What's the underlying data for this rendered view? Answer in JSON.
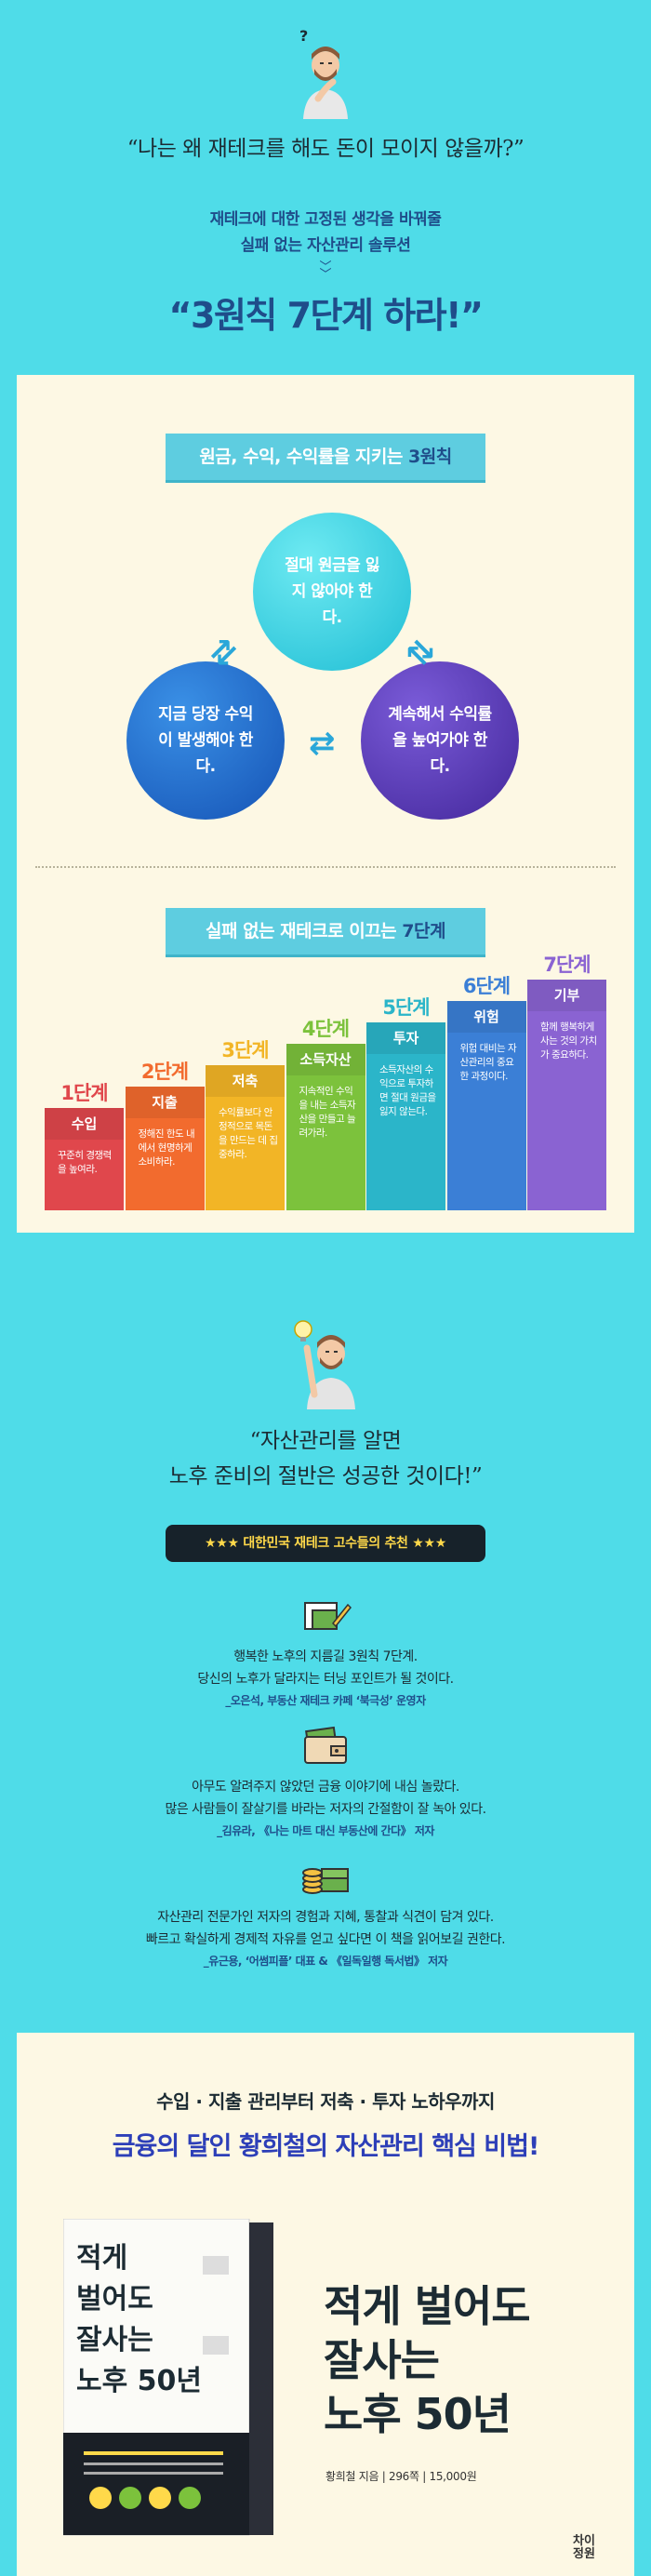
{
  "intro": {
    "question": "“나는 왜 재테크를 해도 돈이 모이지 않을까?”",
    "sub_line1": "재테크에 대한 고정된 생각을 바꿔줄",
    "sub_line2": "실패 없는 자산관리 솔루션",
    "headline": "“3원칙 7단계 하라!”"
  },
  "principles": {
    "ribbon_prefix": "원금, 수익, 수익률을 지키는 ",
    "ribbon_emph": "3원칙",
    "items": [
      "절대 원금을 잃지 않아야 한다.",
      "지금 당장 수익이 발생해야 한다.",
      "계속해서 수익률을 높여가야 한다."
    ]
  },
  "steps": {
    "ribbon_prefix": "실패 없는 재테크로 이끄는 ",
    "ribbon_emph": "7단계",
    "items": [
      {
        "num": "1단계",
        "title": "수입",
        "desc": "꾸준히 경쟁력을 높여라.",
        "color": "#e0474c"
      },
      {
        "num": "2단계",
        "title": "지출",
        "desc": "정해진 한도 내에서 현명하게 소비하라.",
        "color": "#f26b2e"
      },
      {
        "num": "3단계",
        "title": "저축",
        "desc": "수익률보다 안정적으로 목돈을 만드는 데 집중하라.",
        "color": "#f2b526"
      },
      {
        "num": "4단계",
        "title": "소득자산",
        "desc": "지속적인 수익을 내는 소득자산을 만들고 늘려가라.",
        "color": "#7cc23c"
      },
      {
        "num": "5단계",
        "title": "투자",
        "desc": "소득자산의 수익으로 투자하면 절대 원금을 잃지 않는다.",
        "color": "#2bb5c9"
      },
      {
        "num": "6단계",
        "title": "위험",
        "desc": "위험 대비는 자산관리의 중요한 과정이다.",
        "color": "#3b7fd6"
      },
      {
        "num": "7단계",
        "title": "기부",
        "desc": "함께 행복하게 사는 것의 가치가 중요하다.",
        "color": "#8a63d2"
      }
    ]
  },
  "quote": {
    "line1": "“자산관리를 알면",
    "line2": "노후 준비의 절반은 성공한 것이다!”",
    "badge": "★★★ 대한민국 재테크 고수들의 추천 ★★★"
  },
  "recommendations": [
    {
      "icon": "money-pen-icon",
      "line1": "행복한 노후의 지름길 3원칙 7단계.",
      "line2": "당신의 노후가 달라지는 터닝 포인트가 될 것이다.",
      "by": "_오은석, 부동산 재테크 카페 ‘북극성’ 운영자"
    },
    {
      "icon": "wallet-icon",
      "line1": "아무도 알려주지 않았던 금융 이야기에 내심 놀랐다.",
      "line2": "많은 사람들이 잘살기를 바라는 저자의 간절함이 잘 녹아 있다.",
      "by": "_김유라, 《나는 마트 대신 부동산에 간다》 저자"
    },
    {
      "icon": "coins-stack-icon",
      "line1": "자산관리 전문가인 저자의 경험과 지혜, 통찰과 식견이 담겨 있다.",
      "line2": "빠르고 확실하게 경제적 자유를 얻고 싶다면 이 책을 읽어보길 권한다.",
      "by": "_유근용, ‘어썸피플’ 대표 & 《일독일행 독서법》 저자"
    }
  ],
  "book": {
    "lead": "수입 · 지출 관리부터 저축 · 투자 노하우까지",
    "tagline": "금융의 달인 황희철의 자산관리 핵심 비법!",
    "title1": "적게 벌어도",
    "title2": "잘사는",
    "title3": "노후 50년",
    "meta": "황희철 지음 | 296쪽 | 15,000원",
    "publisher1": "차이",
    "publisher2": "정원"
  }
}
